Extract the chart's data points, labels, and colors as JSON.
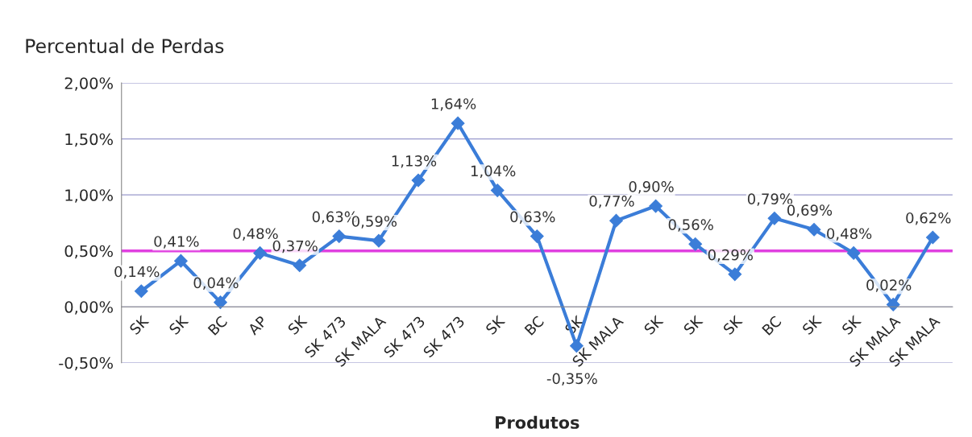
{
  "chart_data": {
    "type": "line",
    "title": "Percentual de Perdas",
    "xlabel": "Produtos",
    "categories": [
      "SK",
      "SK",
      "BC",
      "AP",
      "SK",
      "SK 473",
      "SK MALA",
      "SK 473",
      "SK 473",
      "SK",
      "BC",
      "SK",
      "SK MALA",
      "SK",
      "SK",
      "SK",
      "BC",
      "SK",
      "SK",
      "SK MALA",
      "SK MALA"
    ],
    "series": [
      {
        "color": "#3b7dd8",
        "values": [
          0.14,
          0.41,
          0.04,
          0.48,
          0.37,
          0.63,
          0.59,
          1.13,
          1.64,
          1.04,
          0.63,
          -0.35,
          0.77,
          0.9,
          0.56,
          0.29,
          0.79,
          0.69,
          0.48,
          0.02,
          0.62
        ],
        "value_labels": [
          "0,14%",
          "0,41%",
          "0,04%",
          "0,48%",
          "0,37%",
          "0,63%",
          "0,59%",
          "1,13%",
          "1,64%",
          "1,04%",
          "0,63%",
          "-0,35%",
          "0,77%",
          "0,90%",
          "0,56%",
          "0,29%",
          "0,79%",
          "0,69%",
          "0,48%",
          "0,02%",
          "0,62%"
        ]
      }
    ],
    "ylim": [
      -0.5,
      2.0
    ],
    "yticks": [
      {
        "value": -0.5,
        "label": "-0,50%"
      },
      {
        "value": 0,
        "label": "0,00%"
      },
      {
        "value": 0.5,
        "label": "0,50%"
      },
      {
        "value": 1.0,
        "label": "1,00%"
      },
      {
        "value": 1.5,
        "label": "1,50%"
      },
      {
        "value": 2.0,
        "label": "2,00%"
      }
    ],
    "ref_lines": [
      {
        "axis": "y",
        "value": 0.5,
        "color": "#e040e0"
      }
    ],
    "grid": "y",
    "marker": "diamond",
    "line_style": "solid",
    "legend": false
  }
}
